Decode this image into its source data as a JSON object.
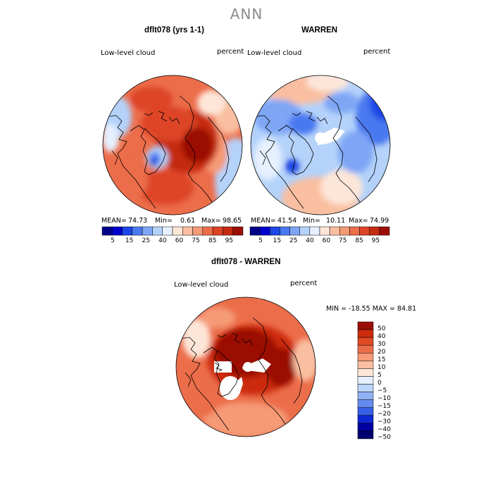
{
  "title": "ANN",
  "colors": {
    "scale_pos": [
      "#00008b",
      "#0000cd",
      "#1e46e6",
      "#4a78f0",
      "#7ea6f5",
      "#b4d2fa",
      "#e6f0ff",
      "#fde6d8",
      "#f9bfa0",
      "#f59a76",
      "#ec6d4a",
      "#dd4426",
      "#c42a10",
      "#9a0e06"
    ],
    "diff": [
      "#00006e",
      "#0000a0",
      "#0f28d2",
      "#3760e6",
      "#648cf0",
      "#8fb2f5",
      "#bcd6fa",
      "#e6f0ff",
      "#fde6d8",
      "#f9bfa0",
      "#f59a76",
      "#ec6d4a",
      "#e04a24",
      "#cc2b0c",
      "#9a0e06"
    ]
  },
  "panels": [
    {
      "title": "dflt078 (yrs 1-1)",
      "var_label": "Low-level cloud",
      "units": "percent",
      "mean_label": "MEAN=",
      "mean": "74.73",
      "min_label": "Min=",
      "min": "0.61",
      "max_label": "Max=",
      "max": "98.65",
      "colorbar_labels": [
        "5",
        "15",
        "25",
        "40",
        "60",
        "75",
        "85",
        "95"
      ]
    },
    {
      "title": "WARREN",
      "var_label": "Low-level cloud",
      "units": "percent",
      "mean_label": "MEAN=",
      "mean": "41.54",
      "min_label": "Min=",
      "min": "10.11",
      "max_label": "Max=",
      "max": "74.99",
      "colorbar_labels": [
        "5",
        "15",
        "25",
        "40",
        "60",
        "75",
        "85",
        "95"
      ]
    }
  ],
  "diff_panel": {
    "title": "dflt078 - WARREN",
    "var_label": "Low-level cloud",
    "units": "percent",
    "minmax_text": "MIN = -18.55 MAX =  84.81",
    "colorbar_labels": [
      "50",
      "40",
      "30",
      "20",
      "15",
      "10",
      "5",
      "0",
      "−5",
      "−10",
      "−15",
      "−20",
      "−30",
      "−40",
      "−50"
    ]
  },
  "chart_data": [
    {
      "type": "heatmap",
      "title": "dflt078 (yrs 1-1)",
      "variable": "Low-level cloud",
      "units": "percent",
      "projection": "north polar stereographic",
      "stats": {
        "mean": 74.73,
        "min": 0.61,
        "max": 98.65
      },
      "color_levels": [
        5,
        15,
        25,
        40,
        60,
        75,
        85,
        95
      ]
    },
    {
      "type": "heatmap",
      "title": "WARREN",
      "variable": "Low-level cloud",
      "units": "percent",
      "projection": "north polar stereographic",
      "stats": {
        "mean": 41.54,
        "min": 10.11,
        "max": 74.99
      },
      "color_levels": [
        5,
        15,
        25,
        40,
        60,
        75,
        85,
        95
      ]
    },
    {
      "type": "heatmap",
      "title": "dflt078 - WARREN",
      "variable": "Low-level cloud",
      "units": "percent",
      "projection": "north polar stereographic",
      "stats": {
        "min": -18.55,
        "max": 84.81
      },
      "color_levels": [
        -50,
        -40,
        -30,
        -20,
        -15,
        -10,
        -5,
        0,
        5,
        10,
        15,
        20,
        30,
        40,
        50
      ]
    }
  ]
}
